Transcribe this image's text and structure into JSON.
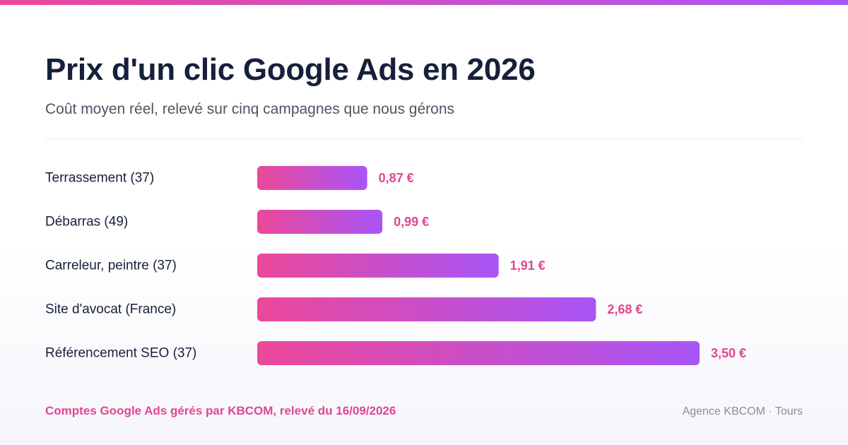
{
  "header": {
    "title": "Prix d'un clic Google Ads en 2026",
    "subtitle": "Coût moyen réel, relevé sur cinq campagnes que nous gérons"
  },
  "colors": {
    "accent_start": "#ec4899",
    "accent_end": "#a855f7",
    "value_label": "#e0468f",
    "title": "#16203a",
    "subtitle": "#4b5563",
    "category_label": "#16203a"
  },
  "chart_data": {
    "type": "bar",
    "orientation": "horizontal",
    "categories": [
      "Terrassement (37)",
      "Débarras (49)",
      "Carreleur, peintre (37)",
      "Site d'avocat (France)",
      "Référencement SEO (37)"
    ],
    "values": [
      0.87,
      0.99,
      1.91,
      2.68,
      3.5
    ],
    "value_labels": [
      "0,87 €",
      "0,99 €",
      "1,91 €",
      "2,68 €",
      "3,50 €"
    ],
    "title": "Prix d'un clic Google Ads en 2026",
    "xlabel": "",
    "ylabel": "",
    "xlim": [
      0,
      3.5
    ],
    "grid": false,
    "legend": "none"
  },
  "footer": {
    "source": "Comptes Google Ads gérés par KBCOM, relevé du 16/09/2026",
    "brand": "Agence KBCOM · Tours"
  }
}
